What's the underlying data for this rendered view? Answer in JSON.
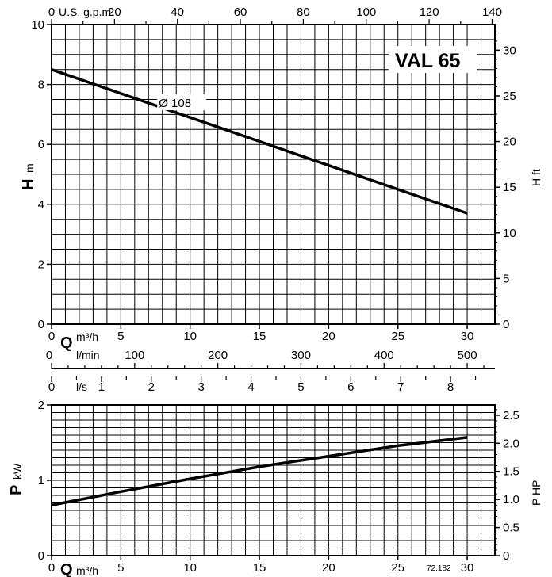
{
  "chart_data": [
    {
      "type": "line",
      "title": "VAL 65",
      "ylabel_symbol": "H",
      "ylabel_unit": "m",
      "ylabel_right": "H ft",
      "x_top_unit": "U.S. g.p.m.",
      "x_bottom_symbol": "Q",
      "x_bottom_unit": "m³/h",
      "xlim": [
        0,
        32
      ],
      "ylim": [
        0,
        10
      ],
      "y_right_lim_ft": [
        0,
        32.8
      ],
      "grid": true,
      "x_ticks": [
        0,
        5,
        10,
        15,
        20,
        25,
        30
      ],
      "y_ticks": [
        0,
        2,
        4,
        6,
        8,
        10
      ],
      "y_right_ticks": [
        0,
        5,
        10,
        15,
        20,
        25,
        30
      ],
      "x_top_ticks": [
        0,
        20,
        40,
        60,
        80,
        100,
        120,
        140
      ],
      "series": [
        {
          "name": "Ø 108",
          "x": [
            0,
            5,
            10,
            15,
            20,
            25,
            30
          ],
          "y": [
            8.5,
            7.7,
            6.9,
            6.1,
            5.3,
            4.5,
            3.7
          ]
        }
      ]
    },
    {
      "type": "line",
      "ylabel_symbol": "P",
      "ylabel_unit": "kW",
      "ylabel_right": "P HP",
      "x_bottom_symbol": "Q",
      "x_bottom_unit": "m³/h",
      "xlim": [
        0,
        32
      ],
      "ylim": [
        0,
        2
      ],
      "grid": true,
      "x_ticks": [
        0,
        5,
        10,
        15,
        20,
        25,
        30
      ],
      "y_ticks": [
        0,
        1,
        2
      ],
      "y_right_ticks": [
        0,
        0.5,
        1.0,
        1.5,
        2.0,
        2.5
      ],
      "y_right_tick_labels": [
        "0",
        "0.5",
        "1.0",
        "1.5",
        "2.0",
        "2.5"
      ],
      "series": [
        {
          "x": [
            0,
            5,
            10,
            15,
            20,
            25,
            30
          ],
          "y": [
            0.67,
            0.85,
            1.02,
            1.18,
            1.32,
            1.46,
            1.57
          ]
        }
      ]
    }
  ],
  "extra_scales": {
    "lmin": {
      "unit": "l/min",
      "ticks": [
        0,
        100,
        200,
        300,
        400,
        500
      ]
    },
    "ls": {
      "unit": "l/s",
      "ticks": [
        0,
        1,
        2,
        3,
        4,
        5,
        6,
        7,
        8
      ]
    }
  },
  "reference_code": "72.182"
}
